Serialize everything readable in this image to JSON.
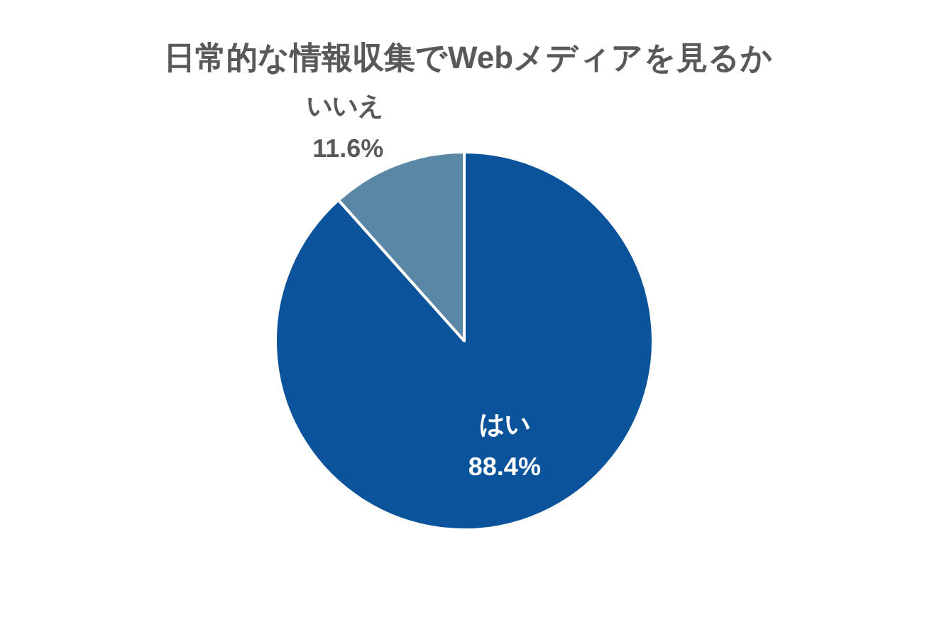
{
  "chart_data": {
    "type": "pie",
    "title": "日常的な情報収集でWebメディアを見るか",
    "categories": [
      "はい",
      "いいえ"
    ],
    "values": [
      88.4,
      11.6
    ],
    "colors": [
      "#0b539b",
      "#5b87a6"
    ],
    "value_labels": [
      "88.4%",
      "11.6%"
    ]
  }
}
